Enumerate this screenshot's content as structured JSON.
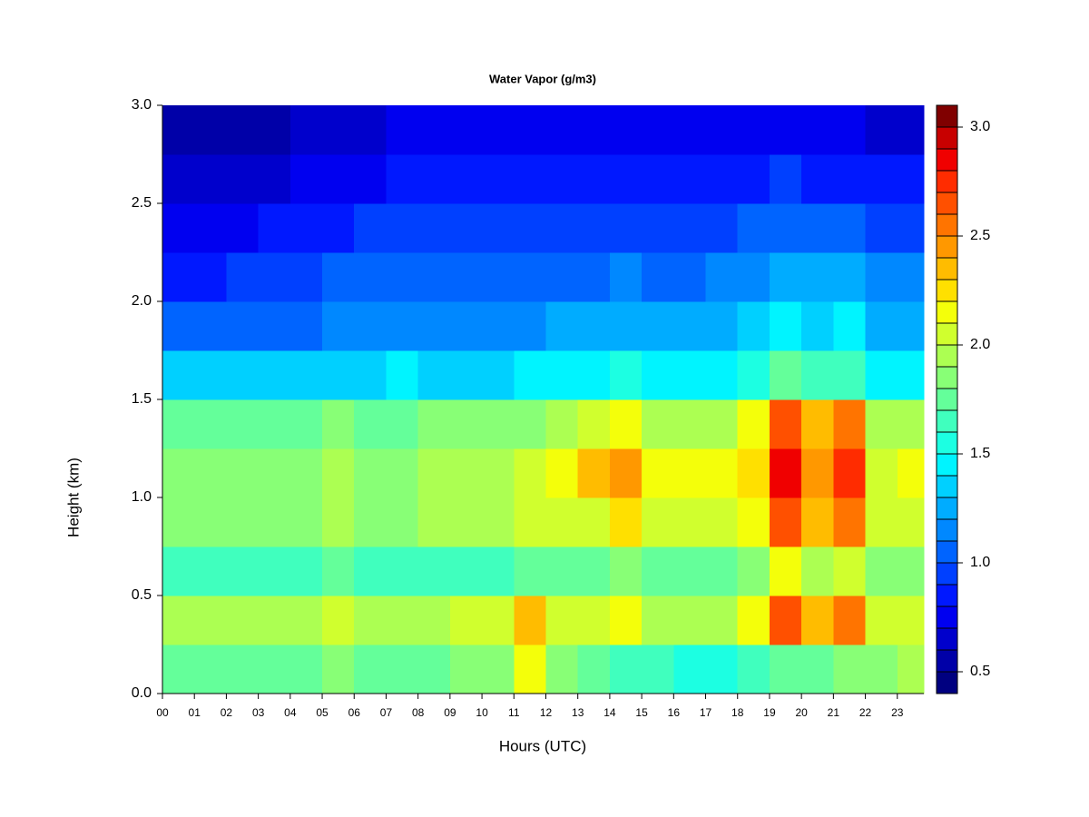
{
  "chart_data": {
    "type": "heatmap",
    "title": "Water Vapor (g/m3)",
    "x_label": "Hours (UTC)",
    "y_label": "Height (km)",
    "xlim": [
      0,
      23.83
    ],
    "ylim": [
      0,
      3.0
    ],
    "xticks": [
      {
        "value": 0,
        "label": "00"
      },
      {
        "value": 1,
        "label": "01"
      },
      {
        "value": 2,
        "label": "02"
      },
      {
        "value": 3,
        "label": "03"
      },
      {
        "value": 4,
        "label": "04"
      },
      {
        "value": 5,
        "label": "05"
      },
      {
        "value": 6,
        "label": "06"
      },
      {
        "value": 7,
        "label": "07"
      },
      {
        "value": 8,
        "label": "08"
      },
      {
        "value": 9,
        "label": "09"
      },
      10,
      11,
      12,
      13,
      14,
      15,
      16,
      17,
      18,
      19,
      20,
      21,
      22,
      23
    ],
    "yticks": [
      {
        "value": 0,
        "label": "0.0"
      },
      0.5,
      {
        "value": 1,
        "label": "1.0"
      },
      1.5,
      {
        "value": 2,
        "label": "2.0"
      },
      2.5,
      {
        "value": 3,
        "label": "3.0"
      }
    ],
    "xbins": [
      0,
      1,
      2,
      3,
      4,
      5,
      6,
      7,
      8,
      9,
      10,
      11,
      12,
      13,
      14,
      15,
      16,
      17,
      18,
      19,
      20,
      21,
      22,
      23,
      23.83
    ],
    "ybins": [
      0,
      0.25,
      0.5,
      0.75,
      1.0,
      1.25,
      1.5,
      1.75,
      2.0,
      2.25,
      2.5,
      2.75,
      3.0
    ],
    "values": [
      [
        1.7,
        1.7,
        1.7,
        1.7,
        1.7,
        1.8,
        1.7,
        1.7,
        1.7,
        1.8,
        1.8,
        2.1,
        1.8,
        1.7,
        1.6,
        1.6,
        1.5,
        1.5,
        1.6,
        1.7,
        1.7,
        1.8,
        1.8,
        1.9
      ],
      [
        1.9,
        1.9,
        1.9,
        1.9,
        1.9,
        2.0,
        1.9,
        1.9,
        1.9,
        2.0,
        2.0,
        2.3,
        2.0,
        2.0,
        2.1,
        1.9,
        1.9,
        1.9,
        2.1,
        2.6,
        2.3,
        2.5,
        2.0,
        2.0
      ],
      [
        1.6,
        1.6,
        1.6,
        1.6,
        1.6,
        1.7,
        1.6,
        1.6,
        1.6,
        1.6,
        1.6,
        1.7,
        1.7,
        1.7,
        1.8,
        1.7,
        1.7,
        1.7,
        1.8,
        2.1,
        1.9,
        2.0,
        1.8,
        1.8
      ],
      [
        1.8,
        1.8,
        1.8,
        1.8,
        1.8,
        1.9,
        1.8,
        1.8,
        1.9,
        1.9,
        1.9,
        2.0,
        2.0,
        2.0,
        2.2,
        2.0,
        2.0,
        2.0,
        2.1,
        2.6,
        2.3,
        2.5,
        2.0,
        2.0
      ],
      [
        1.85,
        1.85,
        1.85,
        1.85,
        1.85,
        1.9,
        1.85,
        1.85,
        1.9,
        1.9,
        1.9,
        2.0,
        2.1,
        2.3,
        2.4,
        2.1,
        2.1,
        2.1,
        2.2,
        2.8,
        2.4,
        2.7,
        2.0,
        2.1
      ],
      [
        1.75,
        1.75,
        1.75,
        1.75,
        1.75,
        1.8,
        1.75,
        1.75,
        1.8,
        1.8,
        1.8,
        1.85,
        1.9,
        2.0,
        2.1,
        1.9,
        1.9,
        1.9,
        2.1,
        2.6,
        2.3,
        2.5,
        1.9,
        1.9
      ],
      [
        1.3,
        1.3,
        1.3,
        1.3,
        1.3,
        1.35,
        1.3,
        1.4,
        1.35,
        1.35,
        1.35,
        1.4,
        1.4,
        1.4,
        1.5,
        1.4,
        1.4,
        1.45,
        1.5,
        1.7,
        1.6,
        1.65,
        1.45,
        1.45
      ],
      [
        1.0,
        1.0,
        1.05,
        1.05,
        1.05,
        1.1,
        1.1,
        1.15,
        1.1,
        1.1,
        1.1,
        1.15,
        1.2,
        1.2,
        1.25,
        1.2,
        1.2,
        1.25,
        1.3,
        1.45,
        1.35,
        1.4,
        1.25,
        1.25
      ],
      [
        0.85,
        0.85,
        0.9,
        0.9,
        0.95,
        1.0,
        1.0,
        1.05,
        1.0,
        1.0,
        1.0,
        1.05,
        1.05,
        1.05,
        1.1,
        1.05,
        1.05,
        1.1,
        1.15,
        1.25,
        1.2,
        1.2,
        1.1,
        1.1
      ],
      [
        0.7,
        0.7,
        0.75,
        0.8,
        0.85,
        0.85,
        0.9,
        0.95,
        0.9,
        0.9,
        0.9,
        0.9,
        0.9,
        0.9,
        0.95,
        0.9,
        0.9,
        0.95,
        1.0,
        1.05,
        1.0,
        1.0,
        0.95,
        0.9
      ],
      [
        0.6,
        0.6,
        0.65,
        0.65,
        0.7,
        0.75,
        0.75,
        0.85,
        0.8,
        0.8,
        0.8,
        0.8,
        0.8,
        0.8,
        0.8,
        0.8,
        0.8,
        0.8,
        0.85,
        0.9,
        0.85,
        0.85,
        0.8,
        0.8
      ],
      [
        0.5,
        0.5,
        0.55,
        0.55,
        0.6,
        0.6,
        0.65,
        0.75,
        0.7,
        0.7,
        0.7,
        0.7,
        0.7,
        0.7,
        0.7,
        0.7,
        0.7,
        0.7,
        0.7,
        0.75,
        0.7,
        0.7,
        0.65,
        0.6
      ]
    ],
    "levels": [
      0.4,
      0.5,
      0.6,
      0.7,
      0.8,
      0.9,
      1.0,
      1.1,
      1.2,
      1.3,
      1.4,
      1.5,
      1.6,
      1.7,
      1.8,
      1.9,
      2.0,
      2.1,
      2.2,
      2.3,
      2.4,
      2.5,
      2.6,
      2.7,
      2.8,
      2.9,
      3.0,
      3.1
    ],
    "colorscale": [
      "#000080",
      "#0000a8",
      "#0000cc",
      "#0000f0",
      "#0018ff",
      "#0040ff",
      "#0064ff",
      "#0088ff",
      "#00acff",
      "#00d0ff",
      "#00f4ff",
      "#1cffe2",
      "#40ffbe",
      "#64ff9a",
      "#88ff76",
      "#acff52",
      "#d0ff2e",
      "#f4ff0a",
      "#ffe000",
      "#ffbc00",
      "#ff9800",
      "#ff7400",
      "#ff5000",
      "#ff2c00",
      "#f00000",
      "#c80000",
      "#800000"
    ],
    "colorbar_ticks": [
      0.5,
      {
        "value": 1,
        "label": "1.0"
      },
      1.5,
      {
        "value": 2,
        "label": "2.0"
      },
      2.5,
      {
        "value": 3,
        "label": "3.0"
      }
    ]
  }
}
